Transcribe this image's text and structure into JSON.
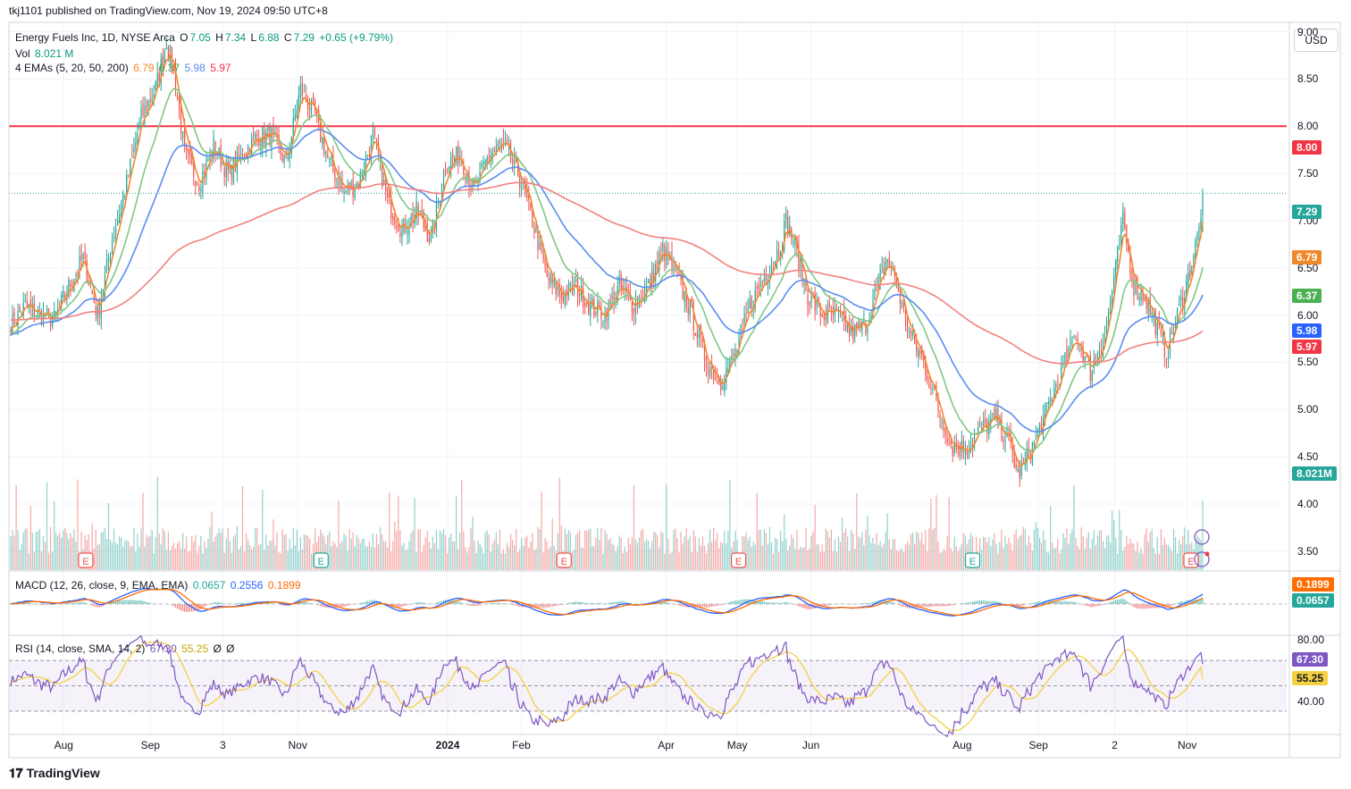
{
  "top_line": "tkj1101 published on TradingView.com, Nov 19, 2024 09:50 UTC+8",
  "symbol_line": {
    "name": "Energy Fuels Inc, 1D, NYSE Arca",
    "o_label": "O",
    "o": "7.05",
    "h_label": "H",
    "h": "7.34",
    "l_label": "L",
    "l": "6.88",
    "c_label": "C",
    "c": "7.29",
    "change": "+0.65 (+9.79%)"
  },
  "volume_line": {
    "label": "Vol",
    "value": "8.021 M"
  },
  "ema_line": {
    "label": "4 EMAs (5, 20, 50, 200)",
    "v5": "6.79",
    "v20": "6.37",
    "v50": "5.98",
    "v200": "5.97"
  },
  "macd_line": {
    "label": "MACD (12, 26, close, 9, EMA, EMA)",
    "hist": "0.0657",
    "macd": "0.2556",
    "signal": "0.1899"
  },
  "rsi_line": {
    "label": "RSI (14, close, SMA, 14, 2)",
    "rsi": "67.30",
    "ma": "55.25",
    "v1": "Ø",
    "v2": "Ø"
  },
  "currency": "USD",
  "footer": "TradingView",
  "colors": {
    "up": "#26a69a",
    "down": "#ef5350",
    "ema5": "#f0892c",
    "ema20": "#81c784",
    "ema50": "#5b8def",
    "ema200": "#f28080",
    "resistance": "#f23645",
    "macd": "#2962ff",
    "signal": "#ff6d00",
    "rsi": "#7e57c2",
    "rsi_ma": "#f5d142"
  },
  "price_axis": [
    "9.00",
    "8.50",
    "8.00",
    "7.50",
    "7.00",
    "6.50",
    "6.00",
    "5.50",
    "5.00",
    "4.50",
    "4.00",
    "3.50"
  ],
  "price_labels": {
    "resistance": "8.00",
    "last": "7.29",
    "ema5": "6.79",
    "ema20": "6.37",
    "ema50": "5.98",
    "ema200": "5.97",
    "volume": "8.021M"
  },
  "macd_labels": {
    "signal": "0.1899",
    "hist": "0.0657"
  },
  "rsi_axis": [
    "80.00",
    "40.00"
  ],
  "rsi_labels": {
    "rsi": "67.30",
    "ma": "55.25"
  },
  "x_axis": [
    {
      "t": "Aug",
      "k": 0.041
    },
    {
      "t": "Sep",
      "k": 0.108
    },
    {
      "t": "3",
      "k": 0.164
    },
    {
      "t": "Nov",
      "k": 0.222
    },
    {
      "t": "2024",
      "k": 0.338
    },
    {
      "t": "Feb",
      "k": 0.395
    },
    {
      "t": "Apr",
      "k": 0.507
    },
    {
      "t": "May",
      "k": 0.562
    },
    {
      "t": "Jun",
      "k": 0.619
    },
    {
      "t": "Aug",
      "k": 0.736
    },
    {
      "t": "Sep",
      "k": 0.795
    },
    {
      "t": "2",
      "k": 0.854
    },
    {
      "t": "Nov",
      "k": 0.91
    }
  ],
  "chart_data": {
    "type": "candlestick",
    "symbol": "Energy Fuels Inc, 1D, NYSE Arca",
    "ylim": [
      3.3,
      9.1
    ],
    "resistance_level": 8.0,
    "close_anchors": [
      [
        0,
        5.9
      ],
      [
        8,
        6.1
      ],
      [
        16,
        6.0
      ],
      [
        24,
        5.95
      ],
      [
        32,
        6.3
      ],
      [
        40,
        6.6
      ],
      [
        48,
        6.0
      ],
      [
        56,
        6.8
      ],
      [
        64,
        7.4
      ],
      [
        72,
        8.1
      ],
      [
        80,
        8.4
      ],
      [
        86,
        8.9
      ],
      [
        90,
        8.6
      ],
      [
        96,
        7.7
      ],
      [
        104,
        7.4
      ],
      [
        112,
        7.8
      ],
      [
        120,
        7.5
      ],
      [
        128,
        7.7
      ],
      [
        136,
        7.9
      ],
      [
        144,
        7.9
      ],
      [
        152,
        7.6
      ],
      [
        160,
        8.4
      ],
      [
        168,
        8.1
      ],
      [
        176,
        7.6
      ],
      [
        184,
        7.3
      ],
      [
        192,
        7.4
      ],
      [
        200,
        7.9
      ],
      [
        208,
        7.2
      ],
      [
        216,
        6.9
      ],
      [
        224,
        7.1
      ],
      [
        232,
        6.8
      ],
      [
        240,
        7.6
      ],
      [
        248,
        7.7
      ],
      [
        256,
        7.3
      ],
      [
        264,
        7.7
      ],
      [
        272,
        7.8
      ],
      [
        280,
        7.5
      ],
      [
        288,
        7.0
      ],
      [
        296,
        6.4
      ],
      [
        304,
        6.2
      ],
      [
        312,
        6.3
      ],
      [
        320,
        6.1
      ],
      [
        328,
        6.0
      ],
      [
        336,
        6.3
      ],
      [
        344,
        6.1
      ],
      [
        352,
        6.3
      ],
      [
        360,
        6.7
      ],
      [
        368,
        6.4
      ],
      [
        376,
        6.0
      ],
      [
        384,
        5.5
      ],
      [
        392,
        5.3
      ],
      [
        400,
        5.6
      ],
      [
        408,
        6.1
      ],
      [
        416,
        6.4
      ],
      [
        424,
        6.7
      ],
      [
        428,
        7.0
      ],
      [
        432,
        6.8
      ],
      [
        440,
        6.2
      ],
      [
        448,
        6.0
      ],
      [
        456,
        6.0
      ],
      [
        464,
        5.8
      ],
      [
        472,
        5.9
      ],
      [
        480,
        6.4
      ],
      [
        484,
        6.6
      ],
      [
        488,
        6.4
      ],
      [
        496,
        5.8
      ],
      [
        504,
        5.5
      ],
      [
        512,
        5.0
      ],
      [
        520,
        4.6
      ],
      [
        528,
        4.6
      ],
      [
        536,
        4.8
      ],
      [
        544,
        4.9
      ],
      [
        552,
        4.6
      ],
      [
        556,
        4.3
      ],
      [
        564,
        4.6
      ],
      [
        572,
        5.0
      ],
      [
        580,
        5.4
      ],
      [
        588,
        5.8
      ],
      [
        596,
        5.4
      ],
      [
        604,
        5.8
      ],
      [
        610,
        6.5
      ],
      [
        614,
        7.0
      ],
      [
        620,
        6.3
      ],
      [
        626,
        6.2
      ],
      [
        632,
        5.9
      ],
      [
        638,
        5.6
      ],
      [
        644,
        6.0
      ],
      [
        650,
        6.4
      ],
      [
        656,
        6.9
      ],
      [
        658,
        7.29
      ]
    ],
    "last": {
      "open": 7.05,
      "high": 7.34,
      "low": 6.88,
      "close": 7.29,
      "change": "+0.65",
      "change_pct": "+9.79%"
    },
    "volume_last": "8.021M",
    "ema_last": {
      "ema5": 6.79,
      "ema20": 6.37,
      "ema50": 5.98,
      "ema200": 5.97
    },
    "macd_last": {
      "macd": 0.2556,
      "signal": 0.1899,
      "hist": 0.0657
    },
    "rsi_last": {
      "rsi": 67.3,
      "ma": 55.25
    },
    "rsi_bands": [
      30,
      50,
      70
    ],
    "rsi_ylim": [
      20,
      85
    ],
    "earnings_markers": [
      {
        "k": 0.058,
        "t": "E",
        "c": "#ef5350"
      },
      {
        "k": 0.24,
        "t": "E",
        "c": "#26a69a"
      },
      {
        "k": 0.428,
        "t": "E",
        "c": "#ef5350"
      },
      {
        "k": 0.563,
        "t": "E",
        "c": "#ef5350"
      },
      {
        "k": 0.744,
        "t": "E",
        "c": "#26a69a"
      },
      {
        "k": 0.913,
        "t": "E",
        "c": "#ef5350"
      }
    ]
  }
}
